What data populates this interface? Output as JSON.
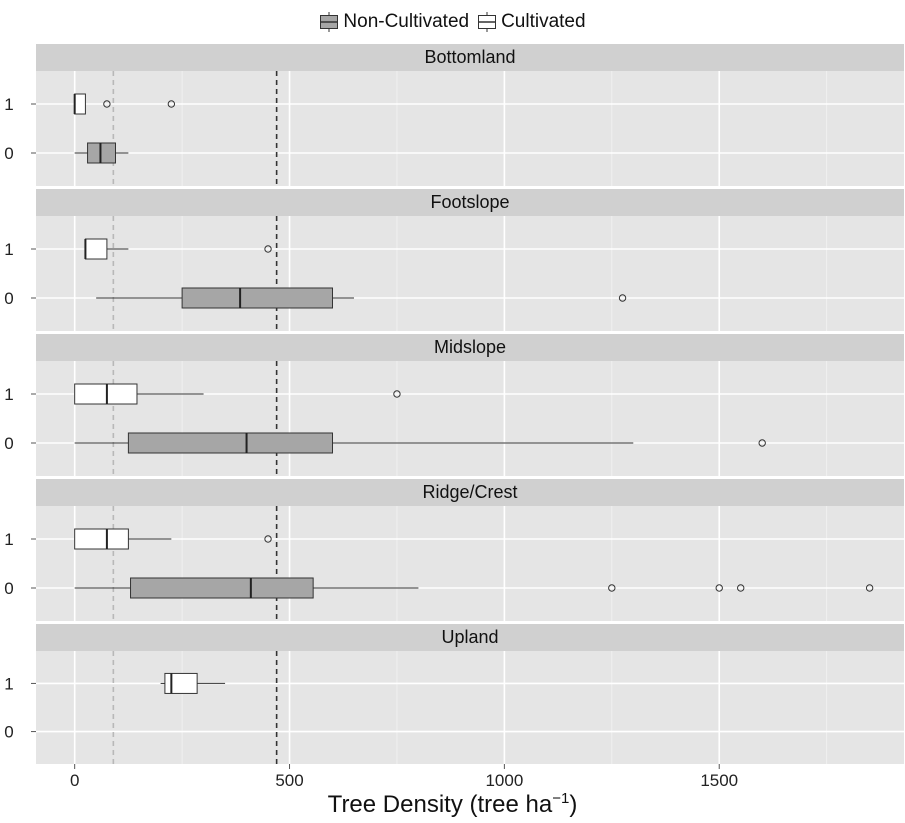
{
  "chart_data": {
    "type": "boxplot",
    "orientation": "horizontal",
    "legend": {
      "position": "top",
      "entries": [
        {
          "label": "Non-Cultivated",
          "fill": "#a6a6a6"
        },
        {
          "label": "Cultivated",
          "fill": "#ffffff"
        }
      ]
    },
    "xlabel_main": "Tree Density (tree ha",
    "xlabel_sup": "−1",
    "xlabel_close": ")",
    "xlim": [
      -90,
      1930
    ],
    "xticks": [
      0,
      500,
      1000,
      1500
    ],
    "y_categories": [
      "0",
      "1"
    ],
    "reference_lines": [
      {
        "x": 90,
        "color": "#b8b8b8",
        "style": "dashed"
      },
      {
        "x": 470,
        "color": "#333333",
        "style": "dashed"
      }
    ],
    "panels": [
      {
        "title": "Bottomland",
        "boxes": [
          {
            "y": "1",
            "group": "Cultivated",
            "whisker_low": 0,
            "q1": 0,
            "median": 0,
            "q3": 25,
            "whisker_high": 25,
            "outliers": [
              75,
              225
            ]
          },
          {
            "y": "0",
            "group": "Non-Cultivated",
            "whisker_low": 0,
            "q1": 30,
            "median": 60,
            "q3": 95,
            "whisker_high": 125,
            "outliers": []
          }
        ]
      },
      {
        "title": "Footslope",
        "boxes": [
          {
            "y": "1",
            "group": "Cultivated",
            "whisker_low": 25,
            "q1": 25,
            "median": 25,
            "q3": 75,
            "whisker_high": 125,
            "outliers": [
              450
            ]
          },
          {
            "y": "0",
            "group": "Non-Cultivated",
            "whisker_low": 50,
            "q1": 250,
            "median": 385,
            "q3": 600,
            "whisker_high": 650,
            "outliers": [
              1275
            ]
          }
        ]
      },
      {
        "title": "Midslope",
        "boxes": [
          {
            "y": "1",
            "group": "Cultivated",
            "whisker_low": 0,
            "q1": 0,
            "median": 75,
            "q3": 145,
            "whisker_high": 300,
            "outliers": [
              750
            ]
          },
          {
            "y": "0",
            "group": "Non-Cultivated",
            "whisker_low": 0,
            "q1": 125,
            "median": 400,
            "q3": 600,
            "whisker_high": 1300,
            "outliers": [
              1600
            ]
          }
        ]
      },
      {
        "title": "Ridge/Crest",
        "boxes": [
          {
            "y": "1",
            "group": "Cultivated",
            "whisker_low": 0,
            "q1": 0,
            "median": 75,
            "q3": 125,
            "whisker_high": 225,
            "outliers": [
              450
            ]
          },
          {
            "y": "0",
            "group": "Non-Cultivated",
            "whisker_low": 0,
            "q1": 130,
            "median": 410,
            "q3": 555,
            "whisker_high": 800,
            "outliers": [
              1250,
              1500,
              1550,
              1850
            ]
          }
        ]
      },
      {
        "title": "Upland",
        "boxes": [
          {
            "y": "1",
            "group": "Cultivated",
            "whisker_low": 200,
            "q1": 210,
            "median": 225,
            "q3": 285,
            "whisker_high": 350,
            "outliers": []
          }
        ]
      }
    ]
  }
}
